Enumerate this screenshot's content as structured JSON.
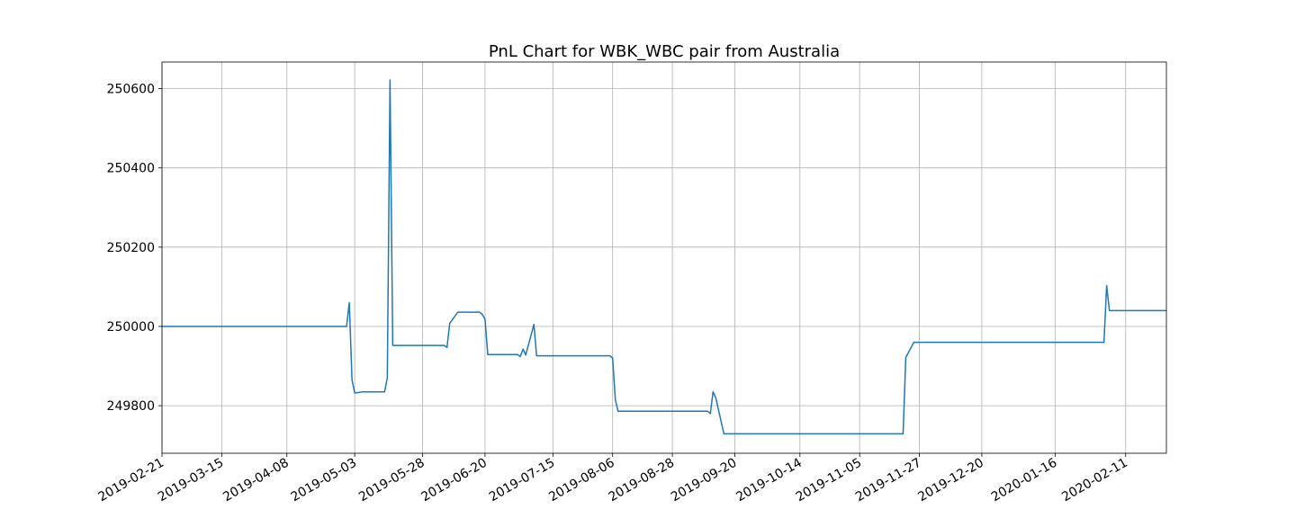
{
  "chart_data": {
    "type": "line",
    "title": "PnL Chart for WBK_WBC pair from Australia",
    "xlabel": "",
    "ylabel": "",
    "grid": true,
    "line_color": "#1f77b4",
    "xlim": [
      "2019-02-21",
      "2020-02-26"
    ],
    "ylim": [
      249680,
      250667
    ],
    "x_ticks": [
      "2019-02-21",
      "2019-03-15",
      "2019-04-08",
      "2019-05-03",
      "2019-05-28",
      "2019-06-20",
      "2019-07-15",
      "2019-08-06",
      "2019-08-28",
      "2019-09-20",
      "2019-10-14",
      "2019-11-05",
      "2019-11-27",
      "2019-12-20",
      "2020-01-16",
      "2020-02-11"
    ],
    "y_ticks": [
      249800,
      250000,
      250200,
      250400,
      250600
    ],
    "series": [
      {
        "x": [
          "2019-02-21",
          "2019-04-30",
          "2019-05-01",
          "2019-05-02",
          "2019-05-03",
          "2019-05-06",
          "2019-05-14",
          "2019-05-15",
          "2019-05-16",
          "2019-05-17",
          "2019-06-05",
          "2019-06-06",
          "2019-06-07",
          "2019-06-10",
          "2019-06-18",
          "2019-06-19",
          "2019-06-20",
          "2019-06-21",
          "2019-07-02",
          "2019-07-03",
          "2019-07-04",
          "2019-07-05",
          "2019-07-08",
          "2019-07-09",
          "2019-08-05",
          "2019-08-06",
          "2019-08-07",
          "2019-08-08",
          "2019-09-10",
          "2019-09-11",
          "2019-09-12",
          "2019-09-13",
          "2019-09-16",
          "2019-11-21",
          "2019-11-22",
          "2019-11-25",
          "2020-02-03",
          "2020-02-04",
          "2020-02-05",
          "2020-02-26"
        ],
        "y": [
          250000,
          250000,
          250060,
          249865,
          249832,
          249835,
          249835,
          249870,
          250622,
          249952,
          249952,
          249947,
          250008,
          250036,
          250036,
          250030,
          250018,
          249929,
          249929,
          249924,
          249943,
          249928,
          250005,
          249926,
          249926,
          249920,
          249815,
          249786,
          249786,
          249780,
          249835,
          249820,
          249729,
          249729,
          249922,
          249960,
          249960,
          250103,
          250040,
          250040
        ]
      }
    ]
  }
}
